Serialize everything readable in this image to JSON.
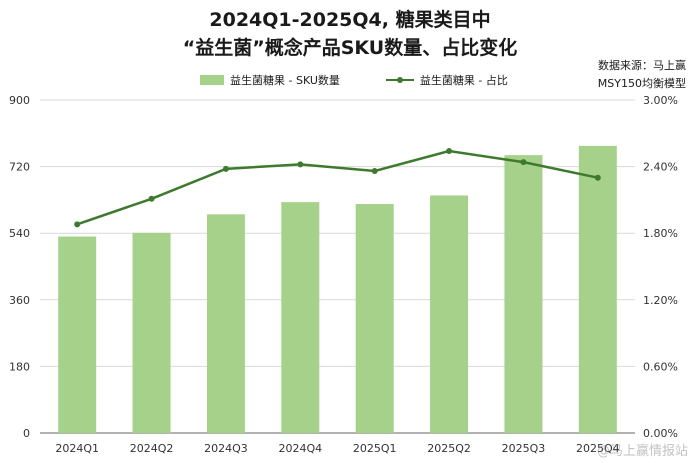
{
  "title_line1": "2024Q1-2025Q4, 糖果类目中",
  "title_line2": "“益生菌”概念产品SKU数量、占比变化",
  "source_line1": "数据来源：马上赢",
  "source_line2": "MSY150均衡模型",
  "watermark": "@马上赢情报站",
  "colors": {
    "bar": "#a6d18a",
    "line": "#3d7a2d",
    "grid": "#d9d9d9",
    "axis": "#666666"
  },
  "chart_data": {
    "type": "bar",
    "categories": [
      "2024Q1",
      "2024Q2",
      "2024Q3",
      "2024Q4",
      "2025Q1",
      "2025Q2",
      "2025Q3",
      "2025Q4"
    ],
    "series": [
      {
        "name": "益生菌糖果 - SKU数量",
        "type": "bar",
        "axis": "left",
        "values": [
          531,
          541,
          591,
          624,
          619,
          642,
          751,
          776
        ]
      },
      {
        "name": "益生菌糖果 - 占比",
        "type": "line",
        "axis": "right",
        "values": [
          0.0188,
          0.0211,
          0.0238,
          0.0242,
          0.0236,
          0.0254,
          0.0244,
          0.023
        ]
      }
    ],
    "y_left": {
      "min": 0,
      "max": 900,
      "ticks": [
        "0",
        "180",
        "360",
        "540",
        "720",
        "900"
      ]
    },
    "y_right": {
      "min": 0,
      "max": 0.03,
      "ticks": [
        "0.00%",
        "0.60%",
        "1.20%",
        "1.80%",
        "2.40%",
        "3.00%"
      ]
    },
    "legend": "top-center",
    "grid": true
  }
}
